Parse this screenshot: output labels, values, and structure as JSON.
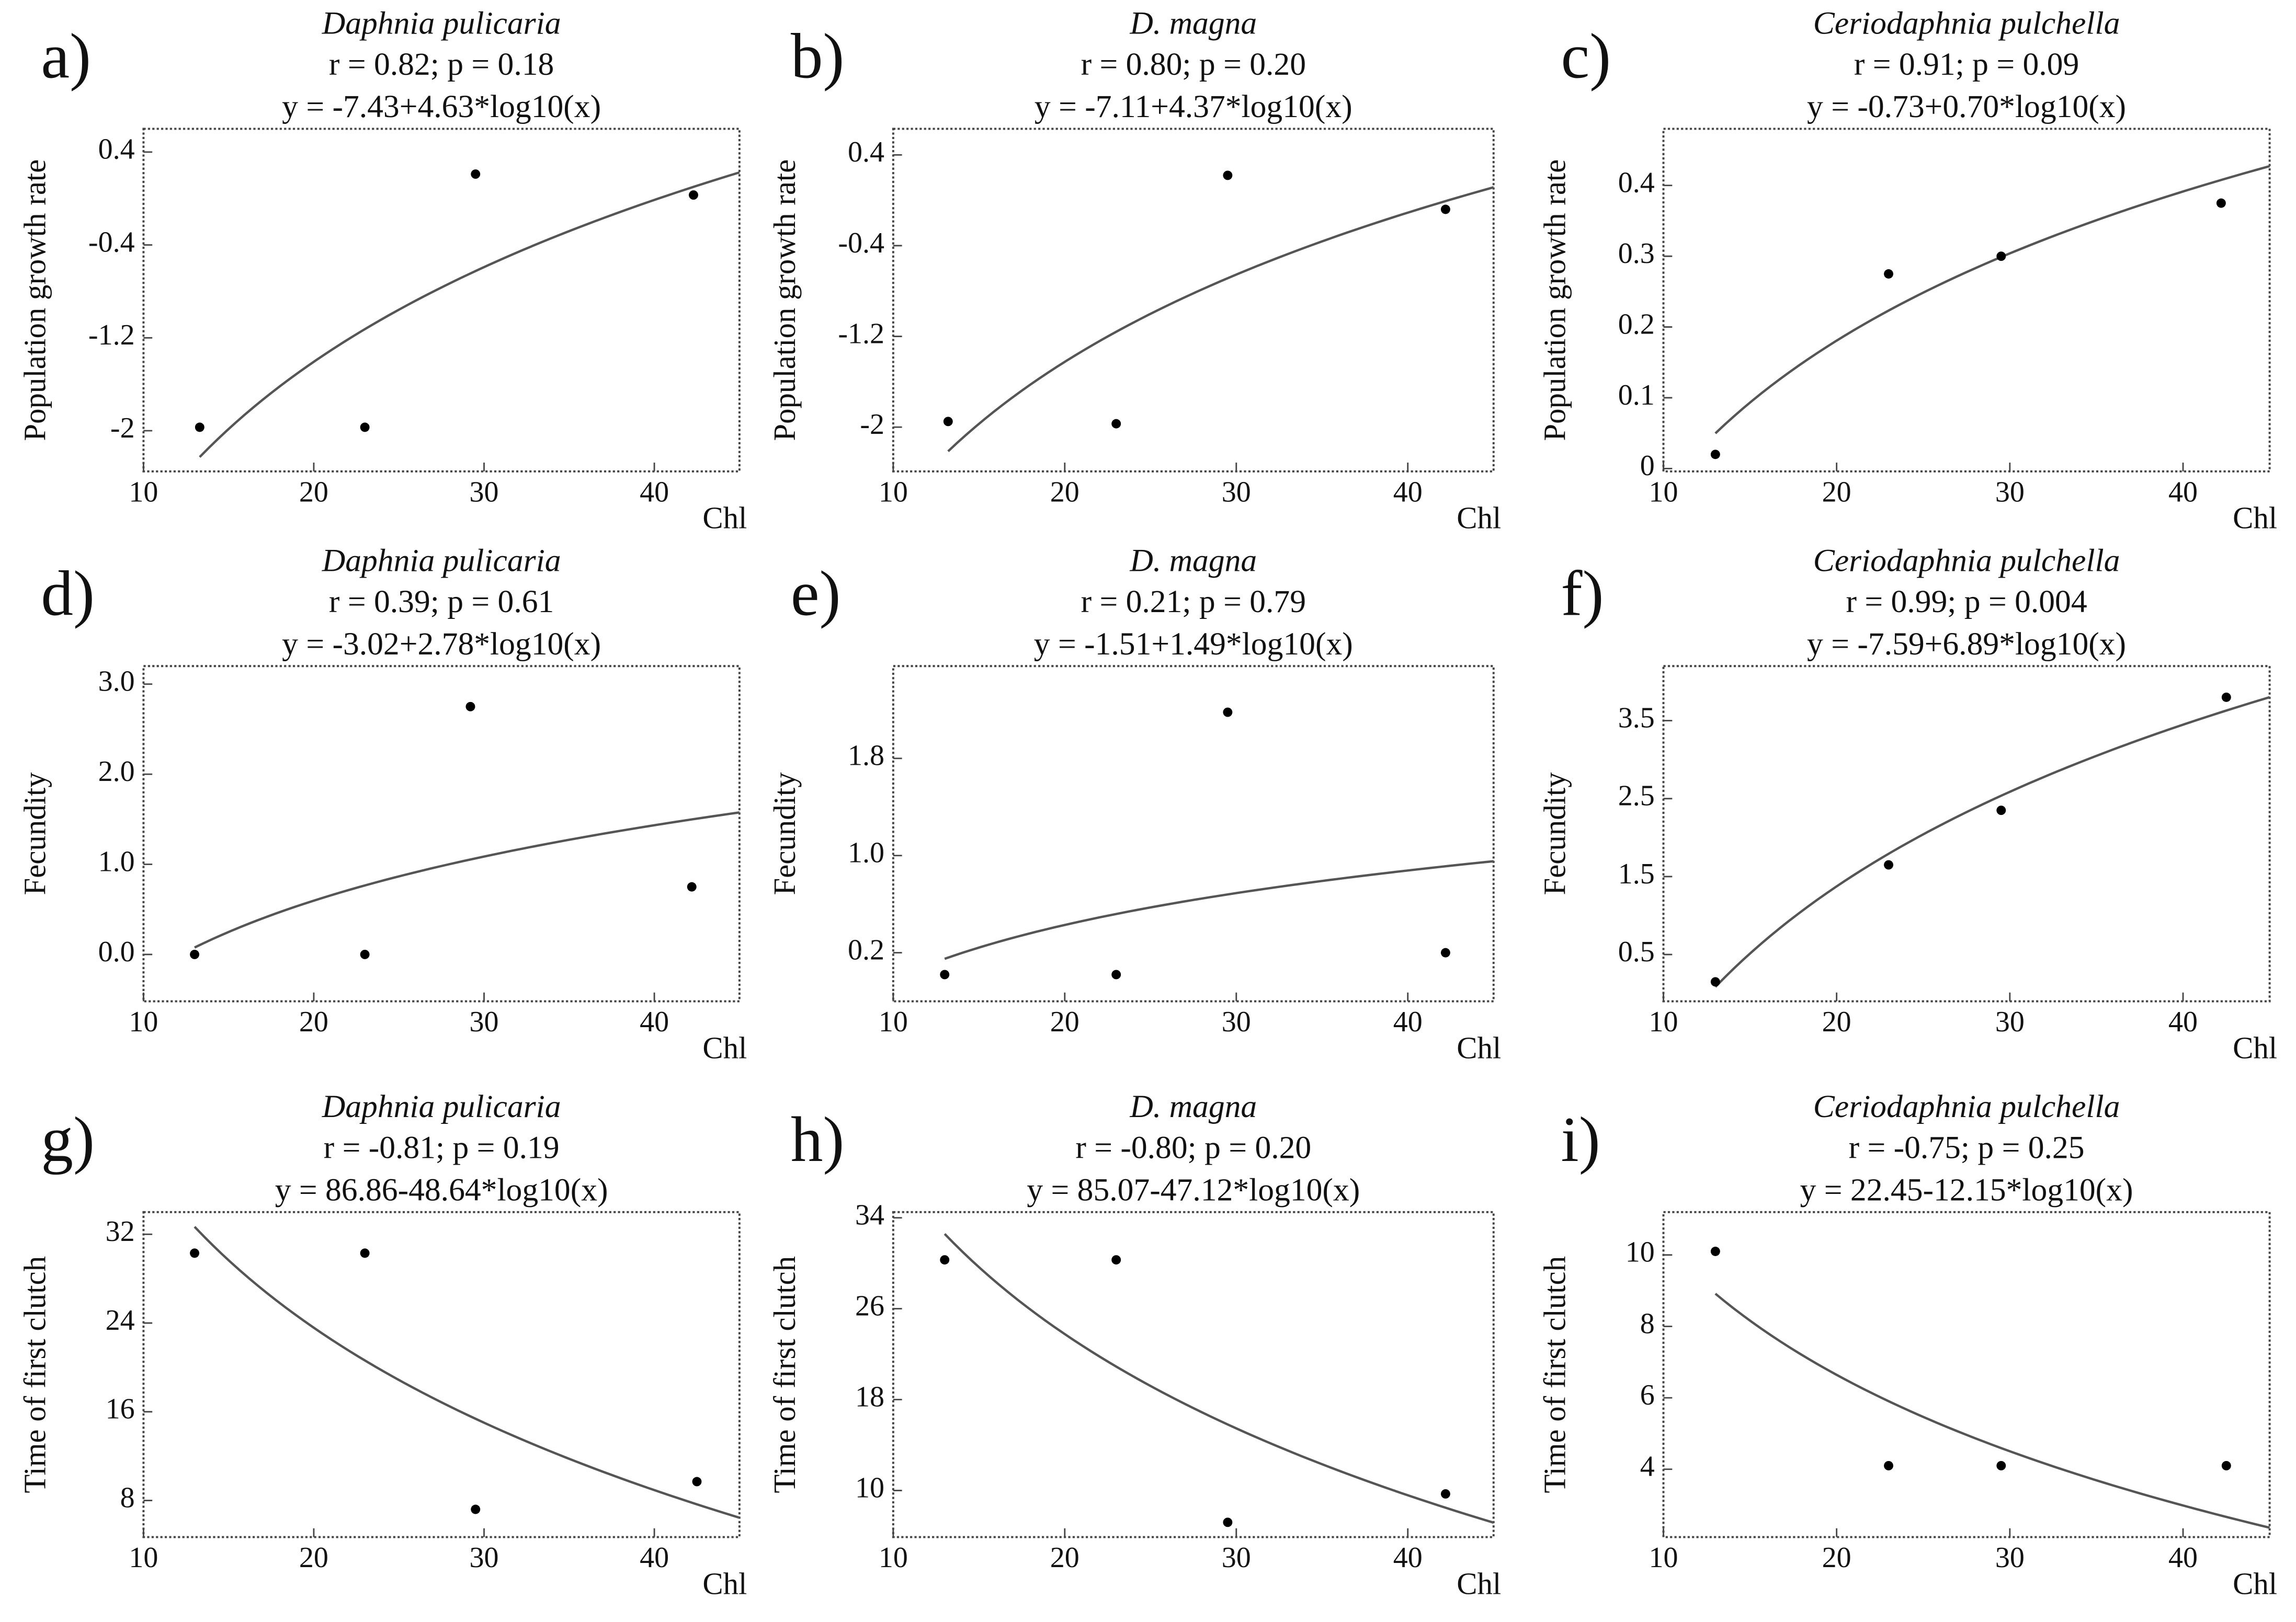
{
  "chart_data": [
    {
      "type": "scatter",
      "panel_label": "a)",
      "title": "Daphnia pulicaria",
      "stats": "r = 0.82; p = 0.18",
      "equation": "y = -7.43+4.63*log10(x)",
      "x_label": "Chl",
      "y_label": "Population growth rate",
      "x": [
        13.3,
        23,
        29.5,
        42.3
      ],
      "values": [
        -1.97,
        -1.97,
        0.21,
        0.03
      ],
      "xlim": [
        10,
        45
      ],
      "ylim": [
        -2.35,
        0.6
      ],
      "xticks": [
        10,
        20,
        30,
        40
      ],
      "yticks": [
        0.4,
        -0.4,
        -1.2,
        -2.0
      ]
    },
    {
      "type": "scatter",
      "panel_label": "b)",
      "title": "D. magna",
      "stats": "r = 0.80; p = 0.20",
      "equation": "y = -7.11+4.37*log10(x)",
      "x_label": "Chl",
      "y_label": "Population growth rate",
      "x": [
        13.2,
        23,
        29.5,
        42.2
      ],
      "values": [
        -1.95,
        -1.97,
        0.22,
        -0.08
      ],
      "xlim": [
        10,
        45
      ],
      "ylim": [
        -2.39,
        0.63
      ],
      "xticks": [
        10,
        20,
        30,
        40
      ],
      "yticks": [
        0.4,
        -0.4,
        -1.2,
        -2.0
      ]
    },
    {
      "type": "scatter",
      "panel_label": "c)",
      "title": "Ceriodaphnia pulchella",
      "stats": "r = 0.91; p = 0.09",
      "equation": "y = -0.73+0.70*log10(x)",
      "x_label": "Chl",
      "y_label": "Population growth rate",
      "x": [
        13,
        23,
        29.5,
        42.2
      ],
      "values": [
        0.02,
        0.275,
        0.3,
        0.375
      ],
      "xlim": [
        10,
        45
      ],
      "ylim": [
        -0.004,
        0.48
      ],
      "xticks": [
        10,
        20,
        30,
        40
      ],
      "yticks": [
        0.0,
        0.1,
        0.2,
        0.3,
        0.4
      ]
    },
    {
      "type": "scatter",
      "panel_label": "d)",
      "title": "Daphnia pulicaria",
      "stats": "r = 0.39; p = 0.61",
      "equation": "y = -3.02+2.78*log10(x)",
      "x_label": "Chl",
      "y_label": "Fecundity",
      "x": [
        13,
        23,
        29.2,
        42.2
      ],
      "values": [
        0.0,
        0.0,
        2.75,
        0.75
      ],
      "xlim": [
        10,
        45
      ],
      "ylim": [
        -0.52,
        3.2
      ],
      "xticks": [
        10,
        20,
        30,
        40
      ],
      "yticks": [
        {
          "value": 3,
          "label": "3.0"
        },
        {
          "value": 2,
          "label": "2.0"
        },
        {
          "value": 1,
          "label": "1.0"
        },
        {
          "value": 0,
          "label": "0.0"
        }
      ]
    },
    {
      "type": "scatter",
      "panel_label": "e)",
      "title": "D. magna",
      "stats": "r = 0.21; p = 0.79",
      "equation": "y = -1.51+1.49*log10(x)",
      "x_label": "Chl",
      "y_label": "Fecundity",
      "x": [
        13,
        23,
        29.5,
        42.2
      ],
      "values": [
        0.02,
        0.02,
        2.18,
        0.2
      ],
      "xlim": [
        10,
        45
      ],
      "ylim": [
        -0.2,
        2.56
      ],
      "xticks": [
        10,
        20,
        30,
        40
      ],
      "yticks": [
        1.8,
        {
          "value": 1,
          "label": "1.0"
        },
        0.2
      ]
    },
    {
      "type": "scatter",
      "panel_label": "f)",
      "title": "Ceriodaphnia pulchella",
      "stats": "r = 0.99; p = 0.004",
      "equation": "y = -7.59+6.89*log10(x)",
      "x_label": "Chl",
      "y_label": "Fecundity",
      "x": [
        13,
        23,
        29.5,
        42.5
      ],
      "values": [
        0.15,
        1.65,
        2.35,
        3.8
      ],
      "xlim": [
        10,
        45
      ],
      "ylim": [
        -0.1,
        4.2
      ],
      "xticks": [
        10,
        20,
        30,
        40
      ],
      "yticks": [
        3.5,
        2.5,
        1.5,
        0.5
      ]
    },
    {
      "type": "scatter",
      "panel_label": "g)",
      "title": "Daphnia pulicaria",
      "stats": "r = -0.81; p = 0.19",
      "equation": "y = 86.86-48.64*log10(x)",
      "x_label": "Chl",
      "y_label": "Time of first clutch",
      "x": [
        13,
        23,
        29.5,
        42.5
      ],
      "values": [
        30.3,
        30.3,
        7.2,
        9.7
      ],
      "xlim": [
        10,
        45
      ],
      "ylim": [
        4.7,
        34
      ],
      "xticks": [
        10,
        20,
        30,
        40
      ],
      "yticks": [
        32,
        24,
        16,
        8
      ]
    },
    {
      "type": "scatter",
      "panel_label": "h)",
      "title": "D. magna",
      "stats": "r = -0.80; p = 0.20",
      "equation": "y = 85.07-47.12*log10(x)",
      "x_label": "Chl",
      "y_label": "Time of first clutch",
      "x": [
        13,
        23,
        29.5,
        42.2
      ],
      "values": [
        30.3,
        30.3,
        7.2,
        9.7
      ],
      "xlim": [
        10,
        45
      ],
      "ylim": [
        5.9,
        34.5
      ],
      "xticks": [
        10,
        20,
        30,
        40
      ],
      "yticks": [
        34,
        26,
        18,
        10
      ]
    },
    {
      "type": "scatter",
      "panel_label": "i)",
      "title": "Ceriodaphnia pulchella",
      "stats": "r = -0.75; p = 0.25",
      "equation": "y = 22.45-12.15*log10(x)",
      "x_label": "Chl",
      "y_label": "Time of first clutch",
      "x": [
        13,
        23,
        29.5,
        42.5
      ],
      "values": [
        10.1,
        4.1,
        4.1,
        4.1
      ],
      "xlim": [
        10,
        45
      ],
      "ylim": [
        2.1,
        11.2
      ],
      "xticks": [
        10,
        20,
        30,
        40
      ],
      "yticks": [
        10,
        8,
        6,
        4
      ]
    }
  ]
}
